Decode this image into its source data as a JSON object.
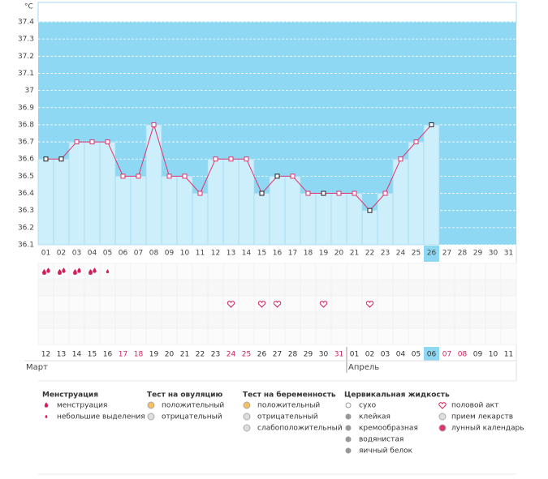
{
  "chart_data": {
    "type": "line",
    "y_unit": "°C",
    "categories": [
      "01",
      "02",
      "03",
      "04",
      "05",
      "06",
      "07",
      "08",
      "09",
      "10",
      "11",
      "12",
      "13",
      "14",
      "15",
      "16",
      "17",
      "18",
      "19",
      "20",
      "21",
      "22",
      "23",
      "24",
      "25",
      "26",
      "27",
      "28",
      "29",
      "30",
      "31"
    ],
    "values": [
      36.6,
      36.6,
      36.7,
      36.7,
      36.7,
      36.5,
      36.5,
      36.8,
      36.5,
      36.5,
      36.4,
      36.6,
      36.6,
      36.6,
      36.4,
      36.5,
      36.5,
      36.4,
      36.4,
      36.4,
      36.4,
      36.3,
      36.4,
      36.6,
      36.7,
      36.8,
      null,
      null,
      null,
      null,
      null
    ],
    "color": "#e0336e",
    "column_color": "#cdeefb",
    "plot_color": "#8fd8f3",
    "marker_colors": [
      "#222",
      "#222",
      "#e0336e",
      "#e0336e",
      "#e0336e",
      "#e0336e",
      "#e0336e",
      "#e0336e",
      "#e0336e",
      "#e0336e",
      "#e0336e",
      "#e0336e",
      "#e0336e",
      "#e0336e",
      "#222",
      "#222",
      "#e0336e",
      "#e0336e",
      "#222",
      "#e0336e",
      "#e0336e",
      "#222",
      "#e0336e",
      "#e0336e",
      "#e0336e",
      "#222",
      null,
      null,
      null,
      null,
      null
    ],
    "ylim": [
      36.1,
      37.4
    ],
    "yticks": [
      36.1,
      36.2,
      36.3,
      36.4,
      36.5,
      36.6,
      36.7,
      36.8,
      36.9,
      37,
      37.1,
      37.2,
      37.3,
      37.4
    ],
    "grid": true,
    "dates": [
      "12",
      "13",
      "14",
      "15",
      "16",
      "17",
      "18",
      "19",
      "20",
      "21",
      "22",
      "23",
      "24",
      "25",
      "26",
      "27",
      "28",
      "29",
      "30",
      "31",
      "01",
      "02",
      "03",
      "04",
      "05",
      "06",
      "07",
      "08",
      "09",
      "10",
      "11"
    ],
    "date_colors": [
      "#333",
      "#333",
      "#333",
      "#333",
      "#333",
      "#d0205a",
      "#d0205a",
      "#333",
      "#333",
      "#333",
      "#333",
      "#333",
      "#d0205a",
      "#d0205a",
      "#333",
      "#333",
      "#333",
      "#333",
      "#333",
      "#d0205a",
      "#333",
      "#333",
      "#333",
      "#333",
      "#333",
      "#333",
      "#d0205a",
      "#d0205a",
      "#333",
      "#333",
      "#333"
    ],
    "months": [
      "Март",
      "Апрель"
    ],
    "menstruation_heavy_days": [
      1,
      2,
      3,
      4
    ],
    "menstruation_light_days": [
      5
    ],
    "intercourse_days": [
      13,
      15,
      16,
      19,
      22
    ]
  },
  "legend": {
    "groups": [
      {
        "title": "Менструация",
        "items": [
          "менструация",
          "небольшие выделения"
        ]
      },
      {
        "title": "Тест на овуляцию",
        "items": [
          "положительный",
          "отрицательный"
        ]
      },
      {
        "title": "Тест на беременность",
        "items": [
          "положительный",
          "отрицательный",
          "слабоположительный"
        ]
      },
      {
        "title": "Цервикальная жидкость",
        "items": [
          "сухо",
          "клейкая",
          "кремообразная",
          "водянистая",
          "яичный белок"
        ]
      }
    ],
    "extra_items": [
      "половой акт",
      "прием лекарств",
      "лунный календарь"
    ]
  }
}
